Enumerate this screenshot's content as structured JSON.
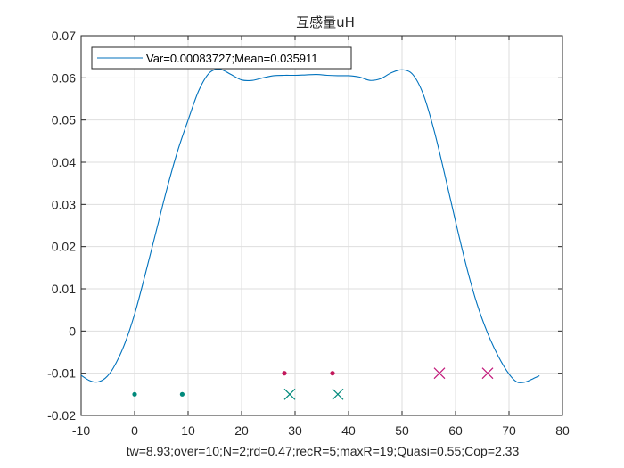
{
  "chart_data": {
    "type": "line",
    "title": "互感量uH",
    "xlabel": "tw=8.93;over=10;N=2;rd=0.47;recR=5;maxR=19;Quasi=0.55;Cop=2.33",
    "ylabel": "",
    "xlim": [
      -10,
      80
    ],
    "ylim": [
      -0.02,
      0.07
    ],
    "xticks": [
      -10,
      0,
      10,
      20,
      30,
      40,
      50,
      60,
      70,
      80
    ],
    "xtick_labels": [
      "-10",
      "0",
      "10",
      "20",
      "30",
      "40",
      "50",
      "60",
      "70",
      "80"
    ],
    "yticks": [
      -0.02,
      -0.01,
      0,
      0.01,
      0.02,
      0.03,
      0.04,
      0.05,
      0.06,
      0.07
    ],
    "ytick_labels": [
      "-0.02",
      "-0.01",
      "0",
      "0.01",
      "0.02",
      "0.03",
      "0.04",
      "0.05",
      "0.06",
      "0.07"
    ],
    "grid": true,
    "legend_placement": "top-left",
    "series": [
      {
        "name": "Var=0.00083727;Mean=0.035911",
        "color": "#0072BD",
        "x": [
          -10,
          -8.5,
          -7,
          -5.5,
          -4,
          -2,
          0,
          2,
          4,
          6,
          8,
          10,
          12,
          14,
          16,
          18,
          20,
          22,
          24,
          26,
          28,
          30,
          32,
          34,
          36,
          38,
          40,
          42,
          44,
          46,
          48,
          50,
          52,
          54,
          56,
          58,
          60,
          62,
          64,
          66,
          68,
          70,
          71.5,
          73,
          74.5,
          75.7
        ],
        "y": [
          -0.0105,
          -0.0117,
          -0.0121,
          -0.0112,
          -0.0088,
          -0.0035,
          0.004,
          0.0135,
          0.0235,
          0.0335,
          0.0425,
          0.05,
          0.057,
          0.0612,
          0.062,
          0.0608,
          0.0595,
          0.0594,
          0.06,
          0.0605,
          0.0606,
          0.0606,
          0.0607,
          0.0608,
          0.0606,
          0.0605,
          0.0605,
          0.0602,
          0.0594,
          0.0598,
          0.0612,
          0.0619,
          0.0608,
          0.056,
          0.0475,
          0.037,
          0.026,
          0.0155,
          0.0065,
          -0.0005,
          -0.006,
          -0.0102,
          -0.0121,
          -0.0121,
          -0.0113,
          -0.0106
        ]
      }
    ],
    "markers": [
      {
        "shape": "dot",
        "color": "#00897B",
        "points": [
          [
            0,
            -0.015
          ],
          [
            8.9,
            -0.015
          ]
        ]
      },
      {
        "shape": "dot",
        "color": "#C2185B",
        "points": [
          [
            28,
            -0.01
          ],
          [
            37,
            -0.01
          ]
        ]
      },
      {
        "shape": "x",
        "color": "#00897B",
        "points": [
          [
            29,
            -0.015
          ],
          [
            38,
            -0.015
          ]
        ]
      },
      {
        "shape": "x",
        "color": "#C2187A",
        "points": [
          [
            57,
            -0.01
          ],
          [
            66,
            -0.01
          ]
        ]
      }
    ]
  }
}
